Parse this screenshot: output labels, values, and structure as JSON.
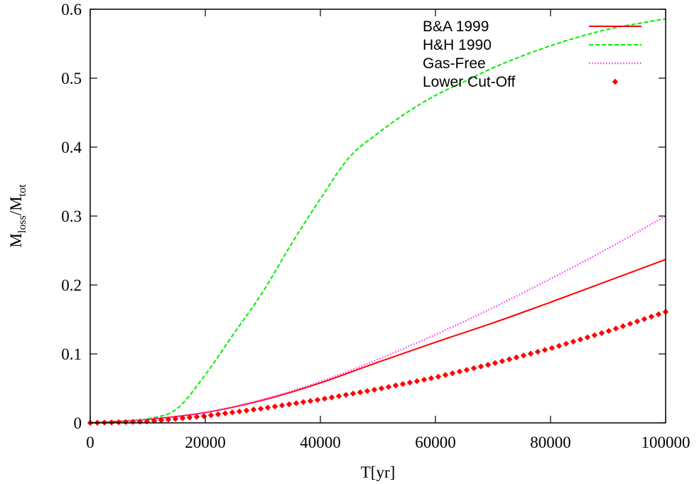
{
  "chart_data": {
    "type": "line",
    "title": "",
    "xlabel": "T[yr]",
    "ylabel_main": "M",
    "ylabel_sub1": "loss",
    "ylabel_sep": "/M",
    "ylabel_sub2": "tot",
    "xlim": [
      0,
      100000
    ],
    "ylim": [
      0,
      0.6
    ],
    "xticks": [
      0,
      20000,
      40000,
      60000,
      80000,
      100000
    ],
    "xtick_labels": [
      "0",
      "20000",
      "40000",
      "60000",
      "80000",
      "100000"
    ],
    "yticks": [
      0,
      0.1,
      0.2,
      0.3,
      0.4,
      0.5,
      0.6
    ],
    "ytick_labels": [
      "0",
      "0.1",
      "0.2",
      "0.3",
      "0.4",
      "0.5",
      "0.6"
    ],
    "grid": false,
    "legend_position": "top-right",
    "series": [
      {
        "name": "B&A 1999",
        "style": "solid",
        "color": "#ff0000",
        "x": [
          0,
          10000,
          20000,
          30000,
          40000,
          50000,
          60000,
          70000,
          80000,
          90000,
          100000
        ],
        "y": [
          0,
          0.005,
          0.015,
          0.033,
          0.058,
          0.088,
          0.117,
          0.145,
          0.175,
          0.206,
          0.237
        ]
      },
      {
        "name": "H&H 1990",
        "style": "dashed",
        "color": "#00ee00",
        "x": [
          0,
          5000,
          10000,
          15000,
          20000,
          25000,
          30000,
          35000,
          40000,
          45000,
          50000,
          55000,
          60000,
          65000,
          70000,
          75000,
          80000,
          85000,
          90000,
          95000,
          100000
        ],
        "y": [
          0,
          0.002,
          0.006,
          0.02,
          0.07,
          0.13,
          0.19,
          0.26,
          0.325,
          0.385,
          0.42,
          0.45,
          0.475,
          0.495,
          0.515,
          0.532,
          0.547,
          0.56,
          0.571,
          0.579,
          0.586
        ]
      },
      {
        "name": "Gas-Free",
        "style": "dotted",
        "color": "#ff44ff",
        "x": [
          0,
          10000,
          20000,
          30000,
          40000,
          50000,
          60000,
          70000,
          80000,
          90000,
          100000
        ],
        "y": [
          0,
          0.005,
          0.015,
          0.034,
          0.06,
          0.092,
          0.128,
          0.167,
          0.209,
          0.253,
          0.3
        ]
      },
      {
        "name": "Lower Cut-Off",
        "style": "points",
        "color": "#ff0000",
        "x": [
          0,
          10000,
          20000,
          30000,
          40000,
          50000,
          60000,
          70000,
          80000,
          90000,
          100000
        ],
        "y": [
          0,
          0.002,
          0.01,
          0.021,
          0.034,
          0.049,
          0.066,
          0.086,
          0.108,
          0.133,
          0.161
        ]
      }
    ]
  }
}
